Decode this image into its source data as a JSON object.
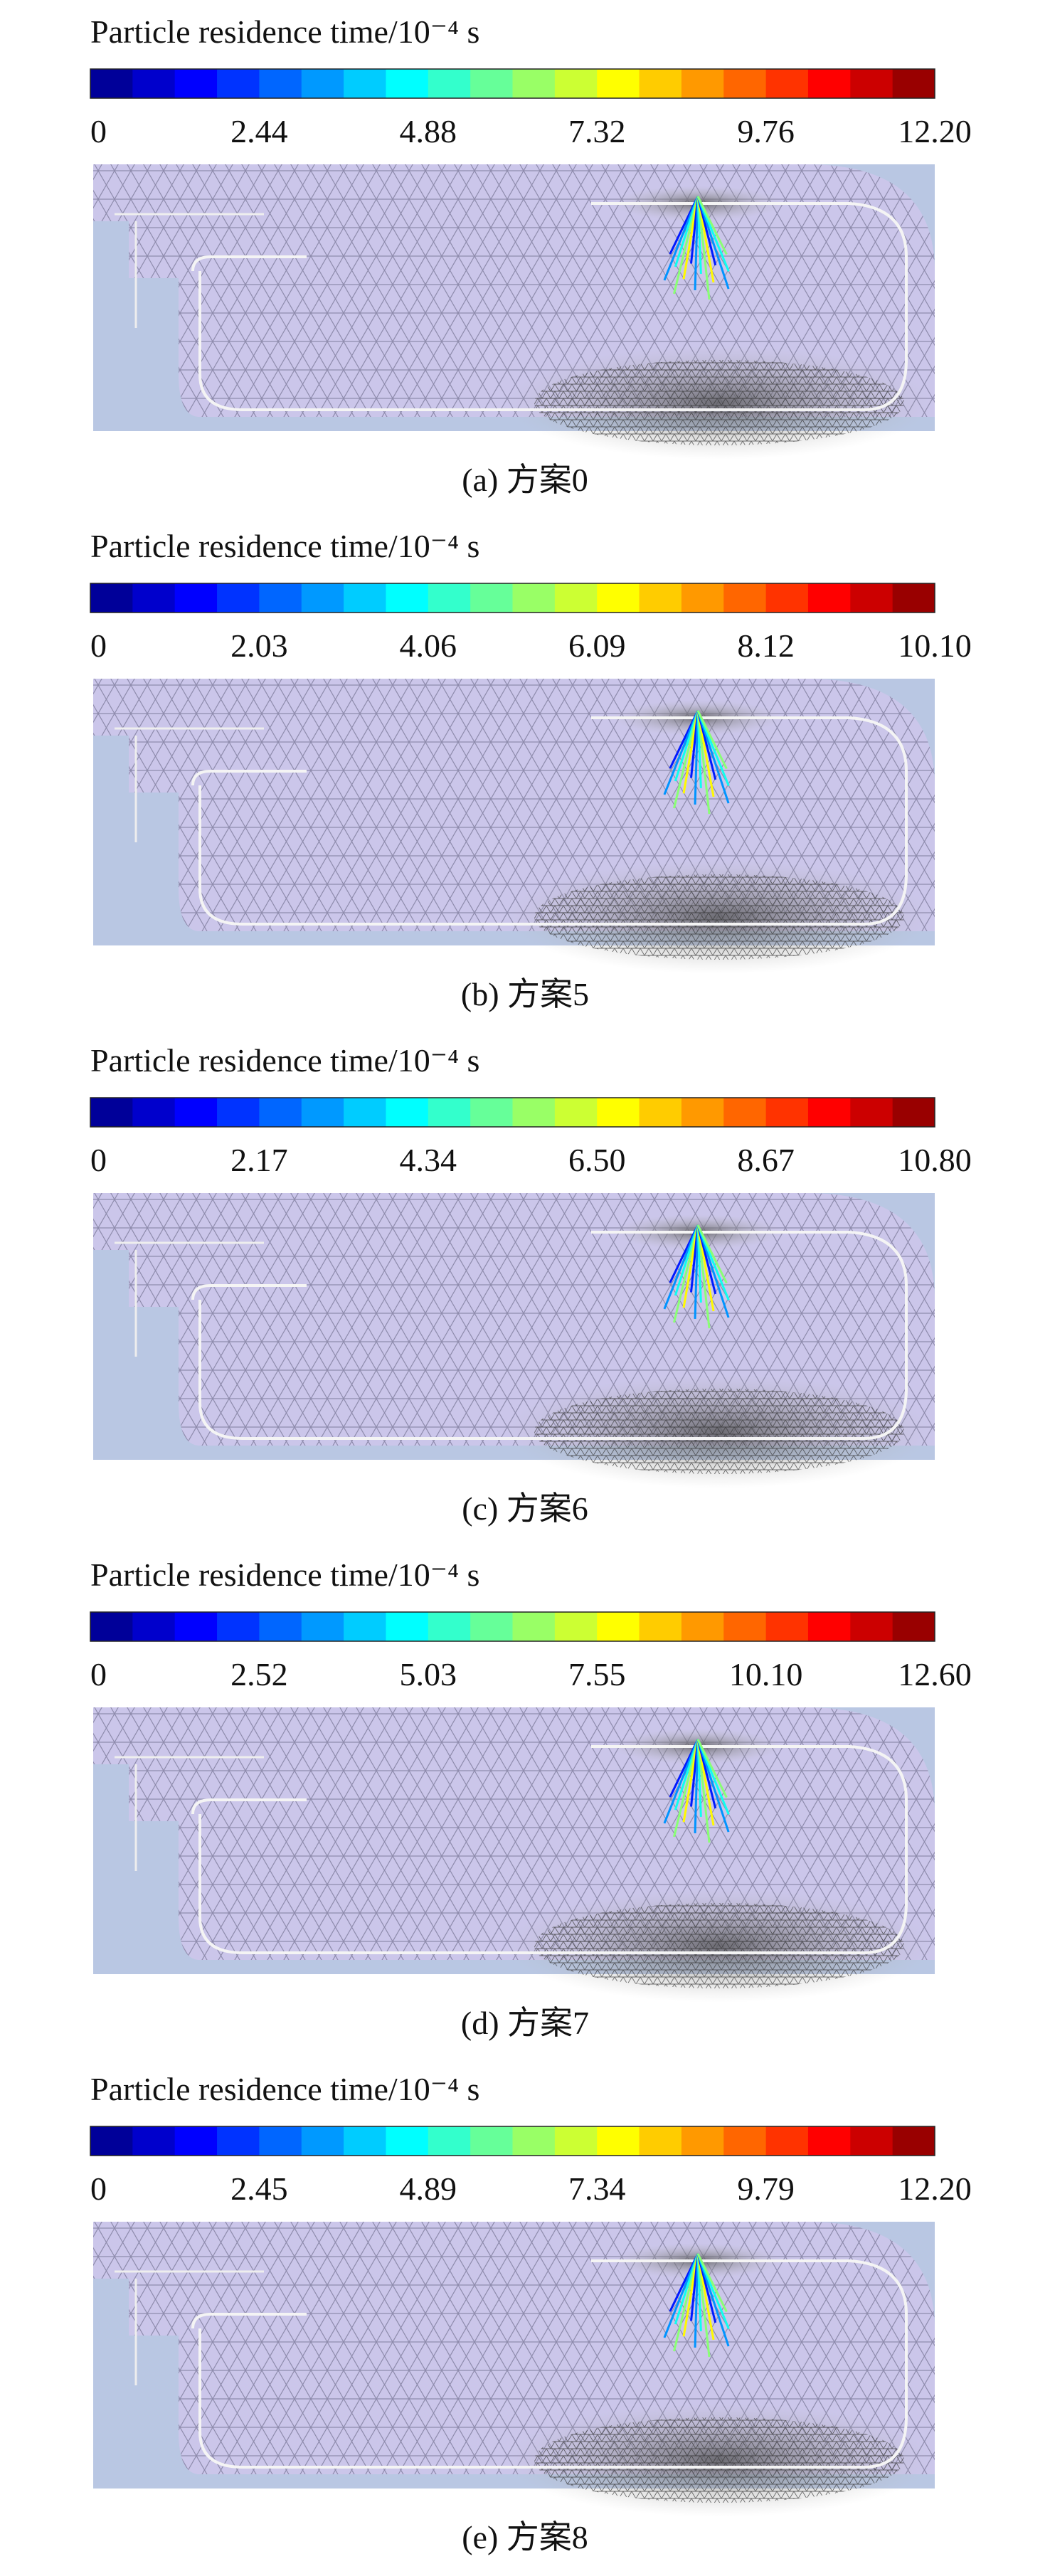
{
  "panels": [
    {
      "title": "Particle residence time/10⁻⁴ s",
      "ticks": [
        "0",
        "2.44",
        "4.88",
        "7.32",
        "9.76",
        "12.20"
      ],
      "caption": "(a) 方案0"
    },
    {
      "title": "Particle residence time/10⁻⁴ s",
      "ticks": [
        "0",
        "2.03",
        "4.06",
        "6.09",
        "8.12",
        "10.10"
      ],
      "caption": "(b) 方案5"
    },
    {
      "title": "Particle residence time/10⁻⁴ s",
      "ticks": [
        "0",
        "2.17",
        "4.34",
        "6.50",
        "8.67",
        "10.80"
      ],
      "caption": "(c) 方案6"
    },
    {
      "title": "Particle residence time/10⁻⁴ s",
      "ticks": [
        "0",
        "2.52",
        "5.03",
        "7.55",
        "10.10",
        "12.60"
      ],
      "caption": "(d) 方案7"
    },
    {
      "title": "Particle residence time/10⁻⁴ s",
      "ticks": [
        "0",
        "2.45",
        "4.89",
        "7.34",
        "9.79",
        "12.20"
      ],
      "caption": "(e) 方案8"
    }
  ]
}
